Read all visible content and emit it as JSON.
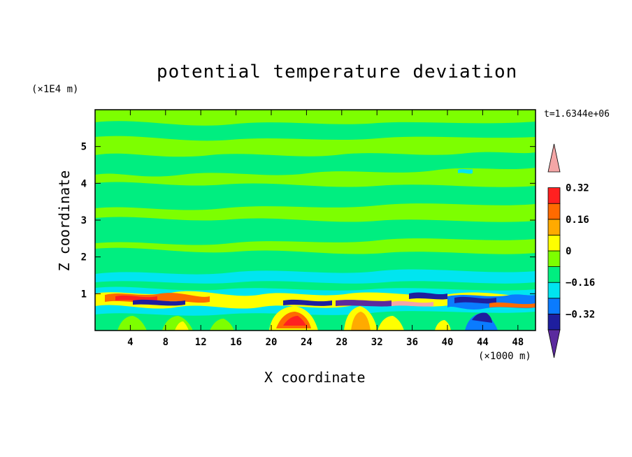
{
  "chart_data": {
    "type": "heatmap",
    "title": "potential temperature deviation",
    "xlabel": "X coordinate",
    "ylabel": "Z coordinate",
    "x_unit_label": "(×1000 m)",
    "y_unit_label": "(×1E4 m)",
    "time_label": "t=1.6344e+06",
    "xlim": [
      0,
      50
    ],
    "ylim": [
      0,
      6
    ],
    "x_ticks": [
      "4",
      "8",
      "12",
      "16",
      "20",
      "24",
      "28",
      "32",
      "36",
      "40",
      "44",
      "48"
    ],
    "y_ticks": [
      "1",
      "2",
      "3",
      "4",
      "5"
    ],
    "colorbar": {
      "labels": [
        "0.32",
        "0.16",
        "0",
        "−0.16",
        "−0.32"
      ],
      "label_levels": [
        0.32,
        0.16,
        0,
        -0.16,
        -0.32
      ],
      "levels": [
        -0.4,
        -0.32,
        -0.24,
        -0.16,
        -0.08,
        0,
        0.08,
        0.16,
        0.24,
        0.32,
        0.4
      ],
      "colors": [
        "#5b2a9e",
        "#1e1e9e",
        "#0a7bff",
        "#00e5f0",
        "#00ee80",
        "#7dff00",
        "#ffff00",
        "#ffaa00",
        "#ff6a00",
        "#ff2020",
        "#f4a6a6"
      ],
      "extend": "both"
    }
  }
}
